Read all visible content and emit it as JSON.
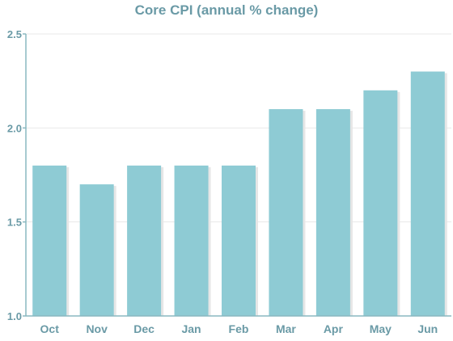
{
  "chart_data": {
    "type": "bar",
    "title": "Core CPI (annual % change)",
    "xlabel": "",
    "ylabel": "",
    "categories": [
      "Oct",
      "Nov",
      "Dec",
      "Jan",
      "Feb",
      "Mar",
      "Apr",
      "May",
      "Jun"
    ],
    "values": [
      1.8,
      1.7,
      1.8,
      1.8,
      1.8,
      2.1,
      2.1,
      2.2,
      2.3
    ],
    "ylim": [
      1.0,
      2.5
    ],
    "yticks": [
      "1.0",
      "1.5",
      "2.0",
      "2.5"
    ],
    "grid": true,
    "legend": "none",
    "colors": {
      "bar": "#8ecbd4",
      "bar_shadow": "#e6e6e6",
      "text": "#6a9aa6",
      "axis": "#8ab8c0",
      "grid": "#e8e8e8"
    }
  }
}
